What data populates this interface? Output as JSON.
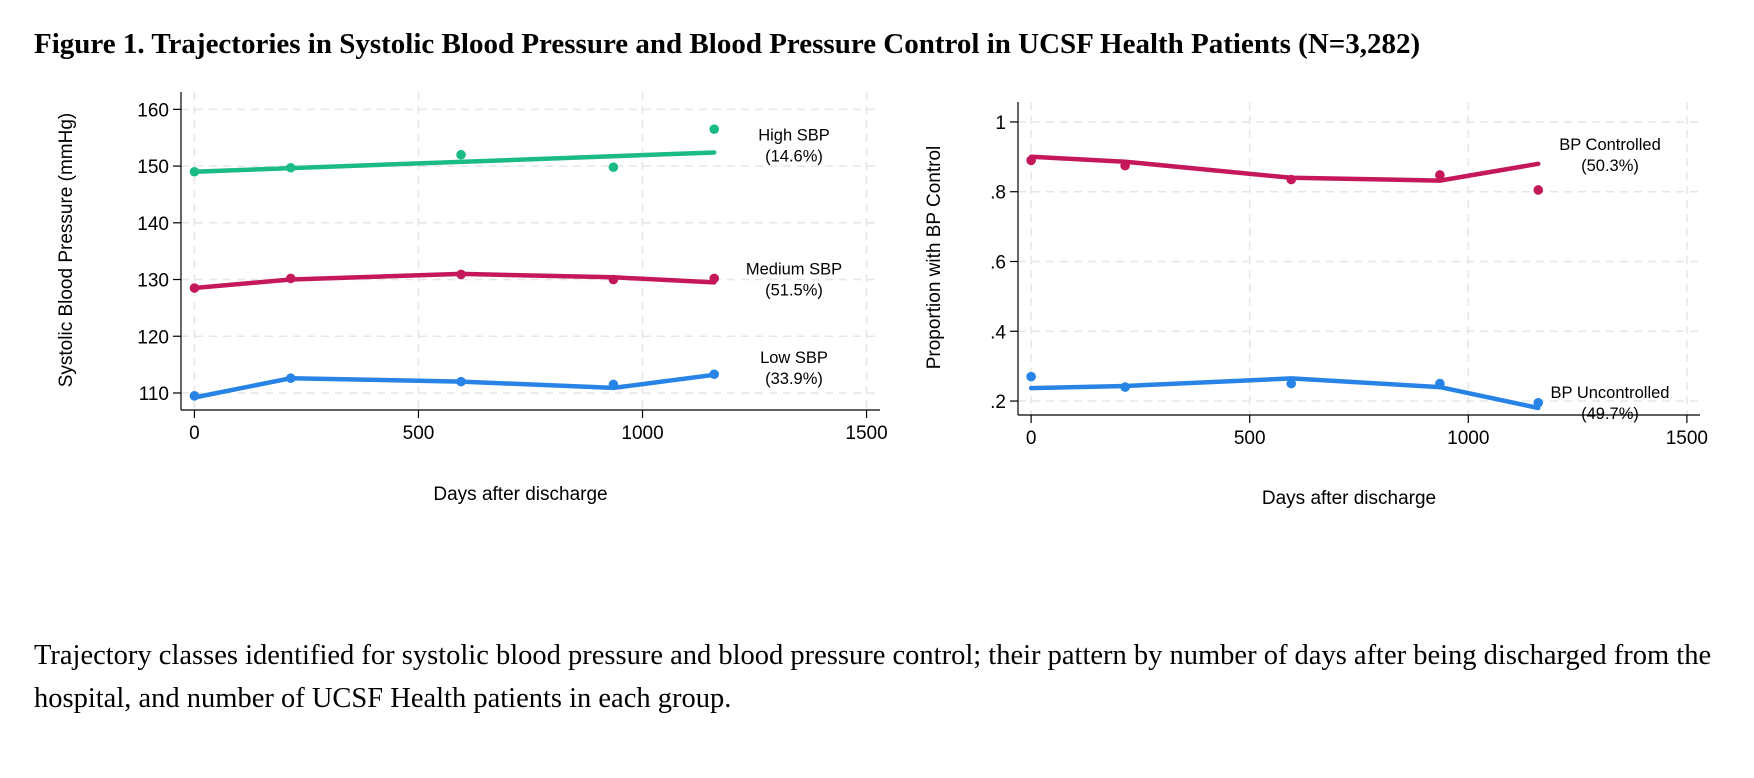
{
  "figure_title": "Figure 1. Trajectories in Systolic Blood Pressure and Blood Pressure Control in UCSF Health Patients (N=3,282)",
  "caption": "Trajectory classes identified for systolic blood pressure and blood pressure control; their pattern by number of days after being discharged from the hospital, and number of UCSF Health patients in each group.",
  "colors": {
    "green": "#1bbc83",
    "crimson": "#c4185a",
    "blue": "#2883e6",
    "grid": "#e6e6e6"
  },
  "chart_data": [
    {
      "type": "line",
      "xlabel": "Days after discharge",
      "ylabel": "Systolic Blood Pressure (mmHg)",
      "xlim": [
        -30,
        1530
      ],
      "ylim": [
        107,
        162
      ],
      "xticks": [
        0,
        500,
        1000,
        1500
      ],
      "yticks": [
        110,
        120,
        130,
        140,
        150,
        160
      ],
      "grid": true,
      "series": [
        {
          "label_line1": "High SBP",
          "label_line2": "(14.6%)",
          "color": "green",
          "fit": [
            [
              0,
              149.0
            ],
            [
              1160,
              152.4
            ]
          ],
          "points": [
            [
              0,
              149.0
            ],
            [
              215,
              149.7
            ],
            [
              595,
              152.0
            ],
            [
              935,
              149.8
            ],
            [
              1160,
              156.5
            ]
          ]
        },
        {
          "label_line1": "Medium SBP",
          "label_line2": "(51.5%)",
          "color": "crimson",
          "fit": [
            [
              0,
              128.5
            ],
            [
              215,
              130.0
            ],
            [
              595,
              131.0
            ],
            [
              935,
              130.4
            ],
            [
              1160,
              129.5
            ]
          ],
          "points": [
            [
              0,
              128.5
            ],
            [
              215,
              130.2
            ],
            [
              595,
              130.9
            ],
            [
              935,
              130.0
            ],
            [
              1160,
              130.2
            ]
          ]
        },
        {
          "label_line1": "Low SBP",
          "label_line2": "(33.9%)",
          "color": "blue",
          "fit": [
            [
              0,
              109.2
            ],
            [
              215,
              112.6
            ],
            [
              595,
              112.0
            ],
            [
              935,
              110.9
            ],
            [
              1160,
              113.2
            ]
          ],
          "points": [
            [
              0,
              109.5
            ],
            [
              215,
              112.6
            ],
            [
              595,
              112.0
            ],
            [
              935,
              111.5
            ],
            [
              1160,
              113.3
            ]
          ]
        }
      ]
    },
    {
      "type": "line",
      "xlabel": "Days after discharge",
      "ylabel": "Proportion with BP Control",
      "xlim": [
        -30,
        1530
      ],
      "ylim": [
        0.16,
        1.04
      ],
      "xticks": [
        0,
        500,
        1000,
        1500
      ],
      "yticks": [
        0.2,
        0.4,
        0.6,
        0.8,
        1
      ],
      "ytick_labels": [
        ".2",
        ".4",
        ".6",
        ".8",
        "1"
      ],
      "grid": true,
      "series": [
        {
          "label_line1": "BP Controlled",
          "label_line2": "(50.3%)",
          "color": "crimson",
          "fit": [
            [
              0,
              0.9
            ],
            [
              215,
              0.886
            ],
            [
              595,
              0.84
            ],
            [
              935,
              0.832
            ],
            [
              1160,
              0.88
            ]
          ],
          "points": [
            [
              0,
              0.89
            ],
            [
              215,
              0.875
            ],
            [
              595,
              0.835
            ],
            [
              935,
              0.848
            ],
            [
              1160,
              0.805
            ]
          ]
        },
        {
          "label_line1": "BP Uncontrolled",
          "label_line2": "(49.7%)",
          "color": "blue",
          "fit": [
            [
              0,
              0.237
            ],
            [
              215,
              0.243
            ],
            [
              595,
              0.265
            ],
            [
              935,
              0.24
            ],
            [
              1160,
              0.18
            ]
          ],
          "points": [
            [
              0,
              0.27
            ],
            [
              215,
              0.24
            ],
            [
              595,
              0.25
            ],
            [
              935,
              0.25
            ],
            [
              1160,
              0.195
            ]
          ]
        }
      ]
    }
  ]
}
